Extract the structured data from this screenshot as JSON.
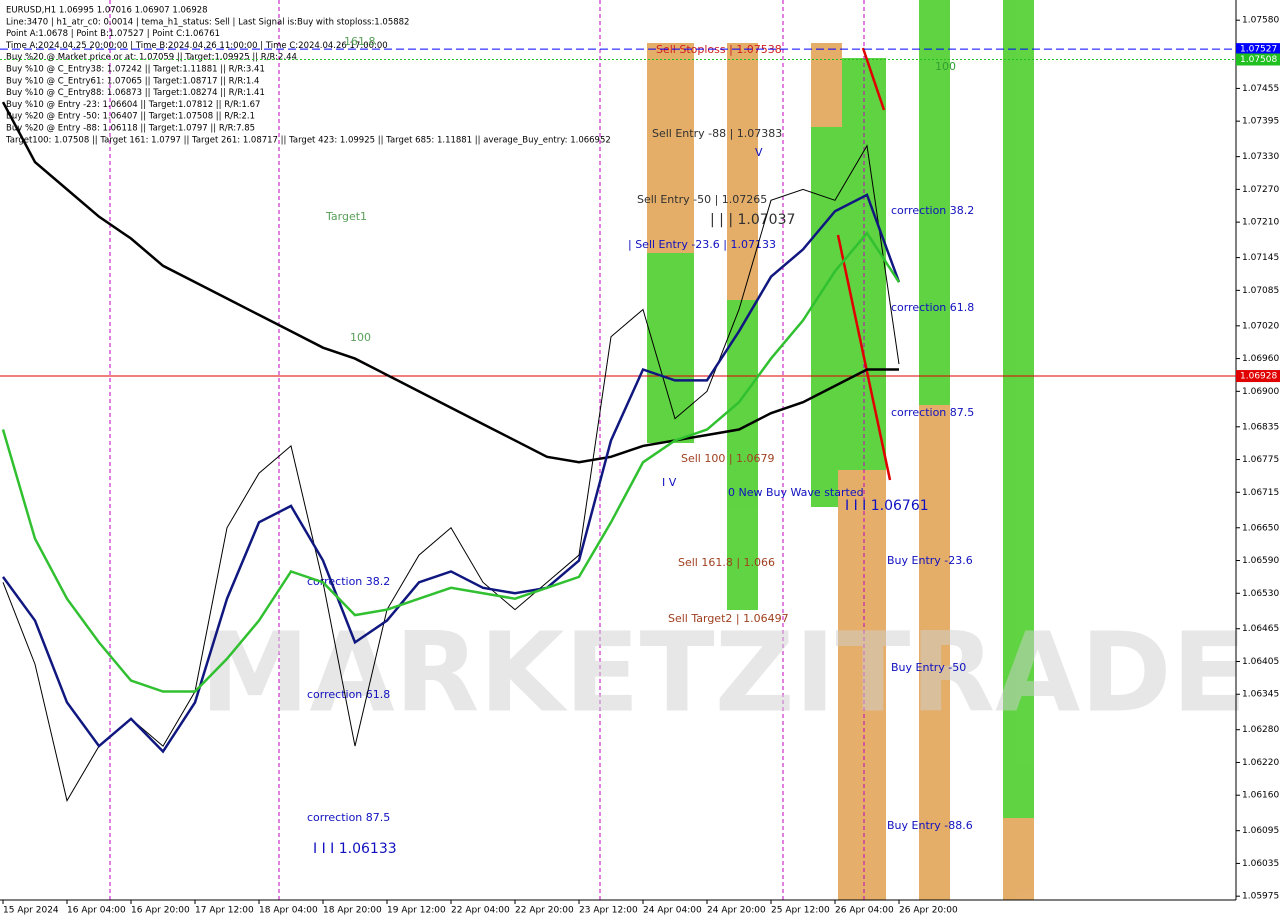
{
  "chart_data": {
    "type": "line",
    "header": [
      "EURUSD,H1  1.06995 1.07016 1.06907 1.06928",
      "Line:3470 | h1_atr_c0: 0.0014 | tema_h1_status: Sell | Last Signal is:Buy with stoploss:1.05882",
      "Point A:1.0678 | Point B:1.07527 | Point C:1.06761",
      "Time A:2024.04.25 20:00:00 | Time B:2024.04.26 11:00:00 | Time C:2024.04.26 17:00:00",
      "Buy %20 @ Market price or at: 1.07059 || Target:1.09925 || R/R:2.44",
      "Buy %10 @ C_Entry38: 1.07242 || Target:1.11881 || R/R:3.41",
      "Buy %10 @ C_Entry61: 1.07065 || Target:1.08717 || R/R:1.4",
      "Buy %10 @ C_Entry88: 1.06873 || Target:1.08274 || R/R:1.41",
      "Buy %10 @ Entry -23: 1.06604 || Target:1.07812 || R/R:1.67",
      "Buy %20 @ Entry -50: 1.06407 || Target:1.07508 || R/R:2.1",
      "Buy %20 @ Entry -88: 1.06118 || Target:1.0797 || R/R:7.85",
      "Target100: 1.07508 || Target 161: 1.0797 || Target 261: 1.08717 || Target 423: 1.09925 || Target 685: 1.11881 || average_Buy_entry: 1.066952"
    ],
    "watermark": "MARKETZITRADE",
    "annotations": [
      "161.8",
      "Target1",
      "100",
      "Sell Stoploss | 1.07538",
      "100",
      "Sell Entry -88 | 1.07383",
      "V",
      "Sell Entry -50 | 1.07265",
      "| | | 1.07037",
      "| Sell Entry -23.6 | 1.07133",
      "correction 38.2",
      "correction 61.8",
      "correction 87.5",
      "Sell 100 | 1.0679",
      "I V",
      "0 New Buy Wave started",
      "I I I 1.06761",
      "Sell 161.8 | 1.066",
      "Sell Target2 | 1.06497",
      "Buy Entry -23.6",
      "Buy Entry -50",
      "Buy Entry -88.6",
      "correction 38.2",
      "correction 61.8",
      "correction 87.5",
      "I I I 1.06133"
    ],
    "categories": [
      "15 Apr 2024",
      null,
      "16 Apr 04:00",
      null,
      "16 Apr 20:00",
      null,
      "17 Apr 12:00",
      null,
      "18 Apr 04:00",
      null,
      "18 Apr 20:00",
      null,
      "19 Apr 12:00",
      null,
      "22 Apr 04:00",
      null,
      "22 Apr 20:00",
      null,
      "23 Apr 12:00",
      null,
      "24 Apr 04:00",
      null,
      "24 Apr 20:00",
      null,
      "25 Apr 12:00",
      null,
      "26 Apr 04:00",
      null,
      "26 Apr 20:00"
    ],
    "series": [
      {
        "name": "close",
        "color": "#000000",
        "values": [
          1.0655,
          1.064,
          1.0615,
          1.0625,
          1.063,
          1.0625,
          1.0635,
          1.0665,
          1.0675,
          1.068,
          1.0655,
          1.0625,
          1.065,
          1.066,
          1.0665,
          1.0655,
          1.065,
          1.0655,
          1.066,
          1.07,
          1.0705,
          1.0685,
          1.069,
          1.0705,
          1.0725,
          1.0727,
          1.0725,
          1.0735,
          1.0695
        ]
      },
      {
        "name": "ma200",
        "color": "#000000",
        "values": [
          1.0743,
          1.0732,
          1.0727,
          1.0722,
          1.0718,
          1.0713,
          1.071,
          1.0707,
          1.0704,
          1.0701,
          1.0698,
          1.0696,
          1.0693,
          1.069,
          1.0687,
          1.0684,
          1.0681,
          1.0678,
          1.0677,
          1.0678,
          1.068,
          1.0681,
          1.0682,
          1.0683,
          1.0686,
          1.0688,
          1.0691,
          1.0694,
          1.0694
        ]
      },
      {
        "name": "tema",
        "color": "#101880",
        "values": [
          1.0656,
          1.0648,
          1.0633,
          1.0625,
          1.063,
          1.0624,
          1.0633,
          1.0652,
          1.0666,
          1.0669,
          1.0659,
          1.0644,
          1.0648,
          1.0655,
          1.0657,
          1.0654,
          1.0653,
          1.0654,
          1.0659,
          1.0681,
          1.0694,
          1.0692,
          1.0692,
          1.0701,
          1.0711,
          1.0716,
          1.0723,
          1.0726,
          1.071
        ]
      },
      {
        "name": "ma",
        "color": "#30c030",
        "values": [
          1.0683,
          1.0663,
          1.0652,
          1.0644,
          1.0637,
          1.0635,
          1.0635,
          1.0641,
          1.0648,
          1.0657,
          1.0655,
          1.0649,
          1.065,
          1.0652,
          1.0654,
          1.0653,
          1.0652,
          1.0654,
          1.0656,
          1.0666,
          1.0677,
          1.0681,
          1.0683,
          1.0688,
          1.0696,
          1.0703,
          1.0712,
          1.0719,
          1.071
        ]
      }
    ],
    "levels": [
      {
        "value": 1.07527,
        "color": "#0000ff"
      },
      {
        "value": 1.07508,
        "color": "#20c020"
      },
      {
        "value": 1.06928,
        "color": "#e00000"
      }
    ],
    "ylim": [
      1.05968,
      1.07617
    ],
    "yticks": [
      {
        "value": 1.0758,
        "label": "1.07580"
      },
      {
        "value": 1.07455,
        "label": "1.07455"
      },
      {
        "value": 1.07395,
        "label": "1.07395"
      },
      {
        "value": 1.0733,
        "label": "1.07330"
      },
      {
        "value": 1.0727,
        "label": "1.07270"
      },
      {
        "value": 1.0721,
        "label": "1.07210"
      },
      {
        "value": 1.07145,
        "label": "1.07145"
      },
      {
        "value": 1.07085,
        "label": "1.07085"
      },
      {
        "value": 1.0702,
        "label": "1.07020"
      },
      {
        "value": 1.0696,
        "label": "1.06960"
      },
      {
        "value": 1.069,
        "label": "1.06900"
      },
      {
        "value": 1.06835,
        "label": "1.06835"
      },
      {
        "value": 1.06775,
        "label": "1.06775"
      },
      {
        "value": 1.06715,
        "label": "1.06715"
      },
      {
        "value": 1.0665,
        "label": "1.06650"
      },
      {
        "value": 1.0659,
        "label": "1.06590"
      },
      {
        "value": 1.0653,
        "label": "1.06530"
      },
      {
        "value": 1.06465,
        "label": "1.06465"
      },
      {
        "value": 1.06405,
        "label": "1.06405"
      },
      {
        "value": 1.06345,
        "label": "1.06345"
      },
      {
        "value": 1.0628,
        "label": "1.06280"
      },
      {
        "value": 1.0622,
        "label": "1.06220"
      },
      {
        "value": 1.0616,
        "label": "1.06160"
      },
      {
        "value": 1.06095,
        "label": "1.06095"
      },
      {
        "value": 1.06035,
        "label": "1.06035"
      },
      {
        "value": 1.05975,
        "label": "1.05975"
      }
    ]
  }
}
